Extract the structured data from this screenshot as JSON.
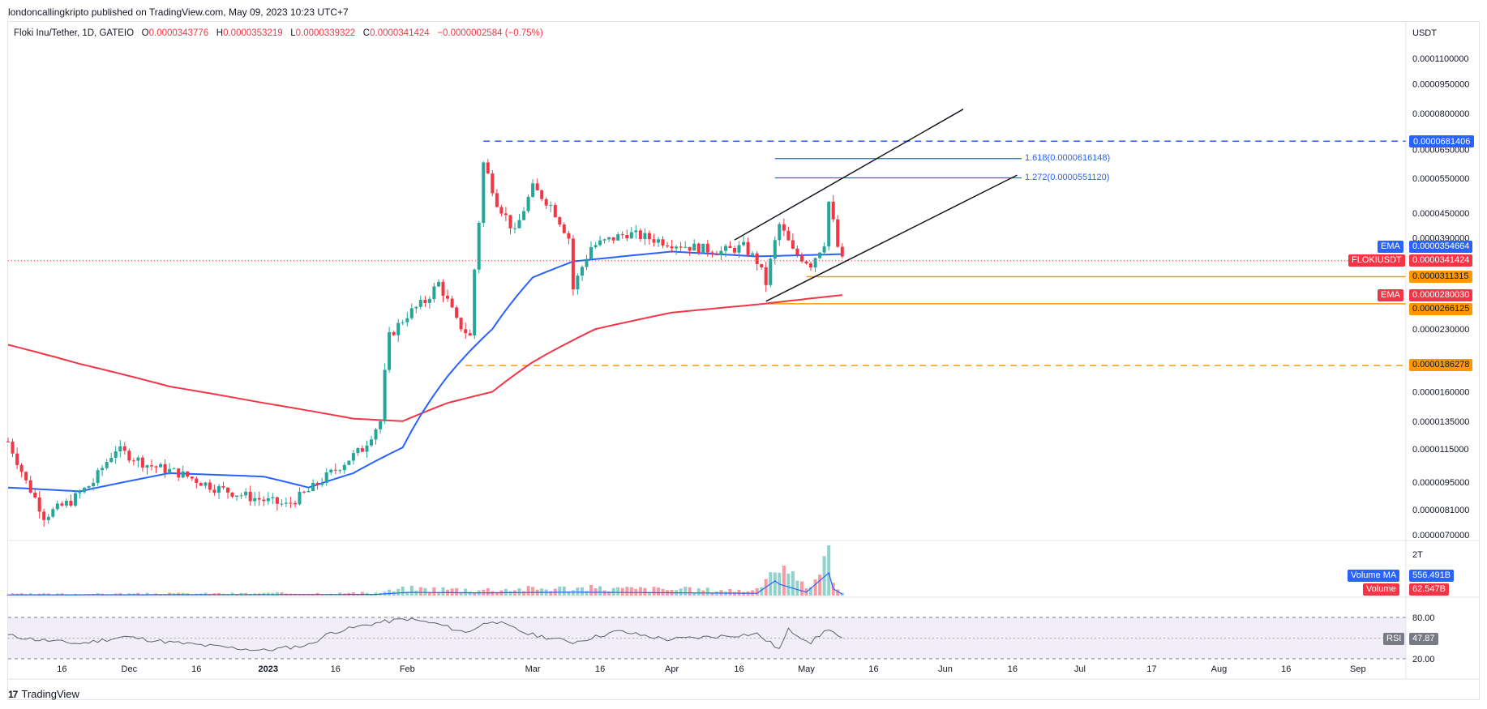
{
  "header": {
    "publisher": "londoncallingkripto published on TradingView.com, May 09, 2023 10:23 UTC+7",
    "symbol": "Floki Inu/Tether, 1D, GATEIO",
    "ohlc": [
      {
        "k": "O",
        "v": "0.0000343776"
      },
      {
        "k": "H",
        "v": "0.0000353219"
      },
      {
        "k": "L",
        "v": "0.0000339322"
      },
      {
        "k": "C",
        "v": "0.0000341424"
      }
    ],
    "change": "−0.0000002584 (−0.75%)"
  },
  "footer": {
    "logo": "17",
    "brand": "TradingView"
  },
  "colors": {
    "up": "#26a69a",
    "down": "#f23645",
    "ema_fast": "#2962ff",
    "ema_slow": "#f23645",
    "orange": "#ff9800",
    "blue_line": "#2962ff"
  },
  "chart_data": {
    "type": "candlestick",
    "scale": "log",
    "currency_label": "USDT",
    "price_tick_labels": [
      "0.0001100000",
      "0.0000950000",
      "0.0000800000",
      "0.0000650000",
      "0.0000550000",
      "0.0000450000",
      "0.0000390000",
      "0.0000230000",
      "0.0000190000",
      "0.0000160000",
      "0.0000135000",
      "0.0000115000",
      "0.0000095000",
      "0.0000081000",
      "0.0000070000"
    ],
    "time_tick_labels": [
      "16",
      "Dec",
      "16",
      "2023",
      "16",
      "Feb",
      "Mar",
      "16",
      "Apr",
      "16",
      "May",
      "16",
      "Jun",
      "16",
      "Jul",
      "17",
      "Aug",
      "16",
      "Sep"
    ],
    "price_labels": {
      "peak": "0.0000681406",
      "fib_1618": "1.618(0.0000616148)",
      "fib_1272": "1.272(0.0000551120)",
      "ema_fast_name": "EMA",
      "ema_fast_value": "0.0000354664",
      "symbol_name": "FLOKIUSDT",
      "last_price": "0.0000341424",
      "support_1": "0.0000311315",
      "ema_slow_name": "EMA",
      "ema_slow_value": "0.0000280030",
      "support_2": "0.0000266125",
      "support_3": "0.0000186278"
    },
    "volume": {
      "top_tick": "2T",
      "ma_name": "Volume MA",
      "ma_value": "556.491B",
      "vol_name": "Volume",
      "vol_value": "62.547B"
    },
    "rsi": {
      "name": "RSI",
      "value": "47.87",
      "upper": "80.00",
      "lower": "20.00",
      "current": 47.87,
      "levels": [
        80,
        50,
        20
      ],
      "series_keypoints": [
        [
          "2022-11-04",
          54
        ],
        [
          "2022-11-10",
          48
        ],
        [
          "2022-11-20",
          42
        ],
        [
          "2022-11-30",
          52
        ],
        [
          "2022-12-10",
          44
        ],
        [
          "2022-12-20",
          38
        ],
        [
          "2022-12-31",
          32
        ],
        [
          "2023-01-10",
          40
        ],
        [
          "2023-01-15",
          58
        ],
        [
          "2023-01-25",
          72
        ],
        [
          "2023-02-01",
          78
        ],
        [
          "2023-02-08",
          70
        ],
        [
          "2023-02-14",
          58
        ],
        [
          "2023-02-20",
          76
        ],
        [
          "2023-02-28",
          56
        ],
        [
          "2023-03-10",
          44
        ],
        [
          "2023-03-20",
          60
        ],
        [
          "2023-03-31",
          48
        ],
        [
          "2023-04-10",
          52
        ],
        [
          "2023-04-20",
          56
        ],
        [
          "2023-04-25",
          34
        ],
        [
          "2023-04-27",
          62
        ],
        [
          "2023-05-02",
          44
        ],
        [
          "2023-05-06",
          64
        ],
        [
          "2023-05-09",
          47.87
        ]
      ]
    },
    "ema_fast_keypoints": [
      [
        "2022-11-04",
        9.2e-06
      ],
      [
        "2022-11-20",
        9e-06
      ],
      [
        "2022-12-10",
        1e-05
      ],
      [
        "2022-12-31",
        9.8e-06
      ],
      [
        "2023-01-10",
        9.2e-06
      ],
      [
        "2023-01-20",
        1e-05
      ],
      [
        "2023-01-31",
        1.16e-05
      ],
      [
        "2023-02-10",
        1.75e-05
      ],
      [
        "2023-02-20",
        2.3e-05
      ],
      [
        "2023-03-01",
        3.1e-05
      ],
      [
        "2023-03-10",
        3.4e-05
      ],
      [
        "2023-04-01",
        3.6e-05
      ],
      [
        "2023-04-20",
        3.5e-05
      ],
      [
        "2023-05-09",
        3.54664e-05
      ]
    ],
    "ema_slow_keypoints": [
      [
        "2022-11-04",
        2.1e-05
      ],
      [
        "2022-11-20",
        1.88e-05
      ],
      [
        "2022-12-10",
        1.65e-05
      ],
      [
        "2022-12-31",
        1.5e-05
      ],
      [
        "2023-01-20",
        1.37e-05
      ],
      [
        "2023-01-31",
        1.35e-05
      ],
      [
        "2023-02-10",
        1.5e-05
      ],
      [
        "2023-02-20",
        1.6e-05
      ],
      [
        "2023-03-01",
        1.9e-05
      ],
      [
        "2023-03-15",
        2.3e-05
      ],
      [
        "2023-04-01",
        2.53e-05
      ],
      [
        "2023-04-20",
        2.65e-05
      ],
      [
        "2023-05-09",
        2.8003e-05
      ]
    ],
    "candle_keypoints": [
      [
        "2022-11-04",
        1.2e-05
      ],
      [
        "2022-11-08",
        9.5e-06
      ],
      [
        "2022-11-12",
        7.8e-06
      ],
      [
        "2022-11-18",
        8.5e-06
      ],
      [
        "2022-11-23",
        9.5e-06
      ],
      [
        "2022-11-28",
        1.15e-05
      ],
      [
        "2022-12-05",
        1.05e-05
      ],
      [
        "2022-12-12",
        1e-05
      ],
      [
        "2022-12-20",
        9.2e-06
      ],
      [
        "2022-12-28",
        8.7e-06
      ],
      [
        "2023-01-05",
        8.3e-06
      ],
      [
        "2023-01-10",
        9e-06
      ],
      [
        "2023-01-15",
        1e-05
      ],
      [
        "2023-01-22",
        1.15e-05
      ],
      [
        "2023-01-26",
        1.35e-05
      ],
      [
        "2023-01-28",
        2.2e-05
      ],
      [
        "2023-02-01",
        2.5e-05
      ],
      [
        "2023-02-05",
        2.7e-05
      ],
      [
        "2023-02-08",
        3e-05
      ],
      [
        "2023-02-12",
        2.4e-05
      ],
      [
        "2023-02-15",
        2.2e-05
      ],
      [
        "2023-02-17",
        4.3e-05
      ],
      [
        "2023-02-18",
        6e-05
      ],
      [
        "2023-02-21",
        4.8e-05
      ],
      [
        "2023-02-25",
        4e-05
      ],
      [
        "2023-03-01",
        5.2e-05
      ],
      [
        "2023-03-05",
        4.7e-05
      ],
      [
        "2023-03-09",
        3.9e-05
      ],
      [
        "2023-03-10",
        2.9e-05
      ],
      [
        "2023-03-14",
        3.7e-05
      ],
      [
        "2023-03-22",
        4e-05
      ],
      [
        "2023-03-31",
        3.8e-05
      ],
      [
        "2023-04-05",
        3.7e-05
      ],
      [
        "2023-04-12",
        3.6e-05
      ],
      [
        "2023-04-17",
        3.7e-05
      ],
      [
        "2023-04-20",
        3.4e-05
      ],
      [
        "2023-04-22",
        3e-05
      ],
      [
        "2023-04-25",
        4.2e-05
      ],
      [
        "2023-04-28",
        3.6e-05
      ],
      [
        "2023-05-02",
        3.35e-05
      ],
      [
        "2023-05-05",
        3.8e-05
      ],
      [
        "2023-05-06",
        4.8e-05
      ],
      [
        "2023-05-08",
        3.7e-05
      ],
      [
        "2023-05-09",
        3.41424e-05
      ]
    ],
    "volume_keypoints": [
      [
        "2022-11-04",
        0.03
      ],
      [
        "2023-01-25",
        0.05
      ],
      [
        "2023-02-01",
        0.14
      ],
      [
        "2023-02-18",
        0.12
      ],
      [
        "2023-03-10",
        0.15
      ],
      [
        "2023-04-20",
        0.1
      ],
      [
        "2023-04-24",
        0.65
      ],
      [
        "2023-04-25",
        0.5
      ],
      [
        "2023-05-01",
        0.15
      ],
      [
        "2023-05-06",
        1.0
      ],
      [
        "2023-05-07",
        0.3
      ],
      [
        "2023-05-09",
        0.06
      ]
    ]
  }
}
